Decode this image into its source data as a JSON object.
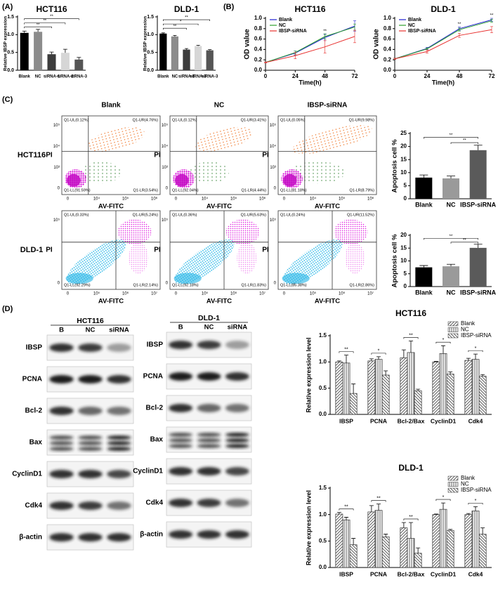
{
  "panels": [
    "(A)",
    "(B)",
    "(C)",
    "(D)"
  ],
  "chart_data": [
    {
      "type": "bar",
      "title": "HCT116",
      "ylabel": "Relative IBSP expression",
      "categories": [
        "Blank",
        "NC",
        "siRNA-1",
        "siRNA-2",
        "siRNA-3"
      ],
      "values": [
        1.05,
        1.08,
        0.45,
        0.49,
        0.3
      ],
      "errors": [
        0.05,
        0.07,
        0.06,
        0.1,
        0.06
      ],
      "colors": [
        "#000000",
        "#8c8c8c",
        "#3c3c3c",
        "#d6d6d6",
        "#555555"
      ],
      "ylim": [
        0,
        1.5
      ],
      "yticks": [
        {
          "value": 0,
          "label": "0.0"
        },
        {
          "value": 0.5,
          "label": "0.5"
        },
        {
          "value": 1,
          "label": "1.0"
        },
        {
          "value": 1.5,
          "label": "1.5"
        }
      ],
      "annotations": [
        "**",
        "**",
        "**"
      ]
    },
    {
      "type": "bar",
      "title": "DLD-1",
      "ylabel": "Relative IBSP expression",
      "categories": [
        "Blank",
        "NC",
        "siRNA-1",
        "siRNA-2",
        "siRNA-3"
      ],
      "values": [
        1.03,
        0.95,
        0.58,
        0.68,
        0.56
      ],
      "errors": [
        0.02,
        0.03,
        0.03,
        0.02,
        0.02
      ],
      "colors": [
        "#000000",
        "#8c8c8c",
        "#3c3c3c",
        "#d6d6d6",
        "#555555"
      ],
      "ylim": [
        0,
        1.5
      ],
      "yticks": [
        {
          "value": 0,
          "label": "0.0"
        },
        {
          "value": 0.5,
          "label": "0.5"
        },
        {
          "value": 1,
          "label": "1.0"
        },
        {
          "value": 1.5,
          "label": "1.5"
        }
      ],
      "annotations": [
        "**",
        "*",
        "**"
      ]
    },
    {
      "type": "line",
      "title": "HCT116",
      "xlabel": "Time(h)",
      "ylabel": "OD value",
      "x": [
        0,
        24,
        48,
        72
      ],
      "xlim": [
        0,
        72
      ],
      "xticks": [
        0,
        24,
        48,
        72
      ],
      "ylim": [
        0,
        1
      ],
      "yticks": [
        {
          "value": 0,
          "label": "0.0"
        },
        {
          "value": 0.2,
          "label": "0.2"
        },
        {
          "value": 0.4,
          "label": "0.4"
        },
        {
          "value": 0.6,
          "label": "0.6"
        },
        {
          "value": 0.8,
          "label": "0.8"
        },
        {
          "value": 1,
          "label": "1.0"
        }
      ],
      "legend": "upper left",
      "series": [
        {
          "name": "Blank",
          "color": "#2020d0",
          "values": [
            0.15,
            0.33,
            0.63,
            0.85
          ],
          "errors": [
            0.01,
            0.04,
            0.06,
            0.1
          ]
        },
        {
          "name": "NC",
          "color": "#2ea02e",
          "values": [
            0.15,
            0.34,
            0.65,
            0.83
          ],
          "errors": [
            0.01,
            0.03,
            0.05,
            0.06
          ]
        },
        {
          "name": "IBSP-siRNA",
          "color": "#e8312f",
          "values": [
            0.15,
            0.28,
            0.45,
            0.65
          ],
          "errors": [
            0.01,
            0.06,
            0.12,
            0.12
          ]
        }
      ],
      "annotations": [
        "**"
      ]
    },
    {
      "type": "line",
      "title": "DLD-1",
      "xlabel": "Time(h)",
      "ylabel": "OD value",
      "x": [
        0,
        24,
        48,
        72
      ],
      "xlim": [
        0,
        72
      ],
      "xticks": [
        0,
        24,
        48,
        72
      ],
      "ylim": [
        0,
        1
      ],
      "yticks": [
        {
          "value": 0,
          "label": "0.0"
        },
        {
          "value": 0.2,
          "label": "0.2"
        },
        {
          "value": 0.4,
          "label": "0.4"
        },
        {
          "value": 0.6,
          "label": "0.6"
        },
        {
          "value": 0.8,
          "label": "0.8"
        },
        {
          "value": 1,
          "label": "1.0"
        }
      ],
      "legend": "upper left",
      "series": [
        {
          "name": "Blank",
          "color": "#2020d0",
          "values": [
            0.22,
            0.42,
            0.8,
            0.97
          ],
          "errors": [
            0.01,
            0.02,
            0.03,
            0.03
          ]
        },
        {
          "name": "NC",
          "color": "#2ea02e",
          "values": [
            0.22,
            0.41,
            0.78,
            0.95
          ],
          "errors": [
            0.01,
            0.02,
            0.03,
            0.03
          ]
        },
        {
          "name": "IBSP-siRNA",
          "color": "#e8312f",
          "values": [
            0.22,
            0.36,
            0.67,
            0.78
          ],
          "errors": [
            0.01,
            0.03,
            0.04,
            0.06
          ]
        }
      ],
      "annotations": [
        "**",
        "**"
      ]
    },
    {
      "type": "bar",
      "ylabel": "Apoptosis cell %",
      "categories": [
        "Blank",
        "NC",
        "IBSP-siRNA"
      ],
      "values": [
        8.1,
        7.8,
        18.6
      ],
      "errors": [
        1.0,
        0.9,
        1.9
      ],
      "colors": [
        "#000000",
        "#9a9a9a",
        "#5a5a5a"
      ],
      "ylim": [
        0,
        25
      ],
      "yticks": [
        0,
        5,
        10,
        15,
        20,
        25
      ],
      "annotations": [
        "**",
        "**"
      ]
    },
    {
      "type": "bar",
      "ylabel": "Apoptosis cell %",
      "categories": [
        "Blank",
        "NC",
        "IBSP-siRNA"
      ],
      "values": [
        7.5,
        7.9,
        15.1
      ],
      "errors": [
        0.7,
        0.8,
        1.4
      ],
      "colors": [
        "#000000",
        "#9a9a9a",
        "#5a5a5a"
      ],
      "ylim": [
        0,
        20
      ],
      "yticks": [
        0,
        5,
        10,
        15,
        20
      ],
      "annotations": [
        "**",
        "**"
      ]
    },
    {
      "type": "grouped_bar",
      "title": "HCT116",
      "ylabel": "Relative expression level",
      "categories": [
        "IBSP",
        "PCNA",
        "Bcl-2/Bax",
        "CyclinD1",
        "Cdk4"
      ],
      "legend": "upper right",
      "ylim": [
        0,
        1.5
      ],
      "yticks": [
        {
          "value": 0,
          "label": "0.0"
        },
        {
          "value": 0.5,
          "label": "0.5"
        },
        {
          "value": 1,
          "label": "1.0"
        },
        {
          "value": 1.5,
          "label": "1.5"
        }
      ],
      "series": [
        {
          "name": "Blank",
          "hatch": "diagonal",
          "color": "#333333",
          "values": [
            1.0,
            1.02,
            1.08,
            1.0,
            1.03
          ],
          "errors": [
            0.02,
            0.04,
            0.15,
            0.01,
            0.04
          ]
        },
        {
          "name": "NC",
          "hatch": "vertical",
          "color": "#333333",
          "values": [
            0.98,
            1.05,
            1.18,
            1.16,
            1.05
          ],
          "errors": [
            0.15,
            0.05,
            0.22,
            0.15,
            0.1
          ]
        },
        {
          "name": "IBSP-siRNA",
          "hatch": "backdiagonal",
          "color": "#333333",
          "values": [
            0.4,
            0.75,
            0.45,
            0.77,
            0.73
          ],
          "errors": [
            0.18,
            0.08,
            0.03,
            0.04,
            0.03
          ]
        }
      ],
      "annotations": [
        "**",
        "*",
        "**",
        "*",
        "*"
      ]
    },
    {
      "type": "grouped_bar",
      "title": "DLD-1",
      "ylabel": "Relative expression level",
      "categories": [
        "IBSP",
        "PCNA",
        "Bcl-2/Bax",
        "CyclinD1",
        "Cdk4"
      ],
      "legend": "upper right",
      "ylim": [
        0,
        1.5
      ],
      "yticks": [
        {
          "value": 0,
          "label": "0.0"
        },
        {
          "value": 0.5,
          "label": "0.5"
        },
        {
          "value": 1,
          "label": "1.0"
        },
        {
          "value": 1.5,
          "label": "1.5"
        }
      ],
      "series": [
        {
          "name": "Blank",
          "hatch": "diagonal",
          "color": "#333333",
          "values": [
            1.01,
            1.05,
            0.75,
            1.0,
            1.0
          ],
          "errors": [
            0.03,
            0.12,
            0.1,
            0.01,
            0.02
          ]
        },
        {
          "name": "NC",
          "hatch": "vertical",
          "color": "#333333",
          "values": [
            0.9,
            1.08,
            0.55,
            1.1,
            1.07
          ],
          "errors": [
            0.05,
            0.12,
            0.3,
            0.12,
            0.08
          ]
        },
        {
          "name": "IBSP-siRNA",
          "hatch": "backdiagonal",
          "color": "#333333",
          "values": [
            0.43,
            0.58,
            0.27,
            0.7,
            0.63
          ],
          "errors": [
            0.12,
            0.05,
            0.1,
            0.02,
            0.12
          ]
        }
      ],
      "annotations": [
        "**",
        "**",
        "**",
        "*",
        "*"
      ]
    }
  ],
  "flow": {
    "columns": [
      "Blank",
      "NC",
      "IBSP-siRNA"
    ],
    "xlabel": "AV-FITC",
    "ylabel": "PI",
    "rows": [
      {
        "label": "HCT116",
        "xtick_labels": [
          "0",
          "10⁴",
          "10⁵",
          "10⁶"
        ],
        "ytick_labels": [
          "0",
          "10³",
          "10⁴",
          "10⁵"
        ],
        "plots": [
          [
            "Q1-UL(0.12%)",
            "Q1-UR(4.76%)",
            "Q1-LL(91.59%)",
            "Q1-LR(3.54%)"
          ],
          [
            "Q1-UL(0.12%)",
            "Q1-UR(3.41%)",
            "Q1-LL(92.04%)",
            "Q1-LR(4.44%)"
          ],
          [
            "Q1-UL(0.05%)",
            "Q1-UR(9.98%)",
            "Q1-LL(81.18%)",
            "Q1-LR(8.79%)"
          ]
        ]
      },
      {
        "label": "DLD-1",
        "xtick_labels": [
          "0",
          "10⁵",
          "10⁶",
          "10⁷"
        ],
        "ytick_labels": [
          "0",
          "10⁵"
        ],
        "plots": [
          [
            "Q1-UL(0.33%)",
            "Q1-UR(5.24%)",
            "Q1-LL(92.29%)",
            "Q1-LR(2.14%)"
          ],
          [
            "Q1-UL(0.36%)",
            "Q1-UR(5.63%)",
            "Q1-LL(92.18%)",
            "Q1-LR(1.83%)"
          ],
          [
            "Q1-UL(0.24%)",
            "Q1-UR(11.52%)",
            "Q1-LL(85.38%)",
            "Q1-LR(2.86%)"
          ]
        ]
      }
    ]
  },
  "blots": [
    {
      "title": "HCT116",
      "lanes": [
        "B",
        "NC",
        "siRNA"
      ],
      "proteins": [
        "IBSP",
        "PCNA",
        "Bcl-2",
        "Bax",
        "CyclinD1",
        "Cdk4",
        "β-actin"
      ]
    },
    {
      "title": "DLD-1",
      "lanes": [
        "B",
        "NC",
        "siRNA"
      ],
      "proteins": [
        "IBSP",
        "PCNA",
        "Bcl-2",
        "Bax",
        "CyclinD1",
        "Cdk4",
        "β-actin"
      ]
    }
  ]
}
